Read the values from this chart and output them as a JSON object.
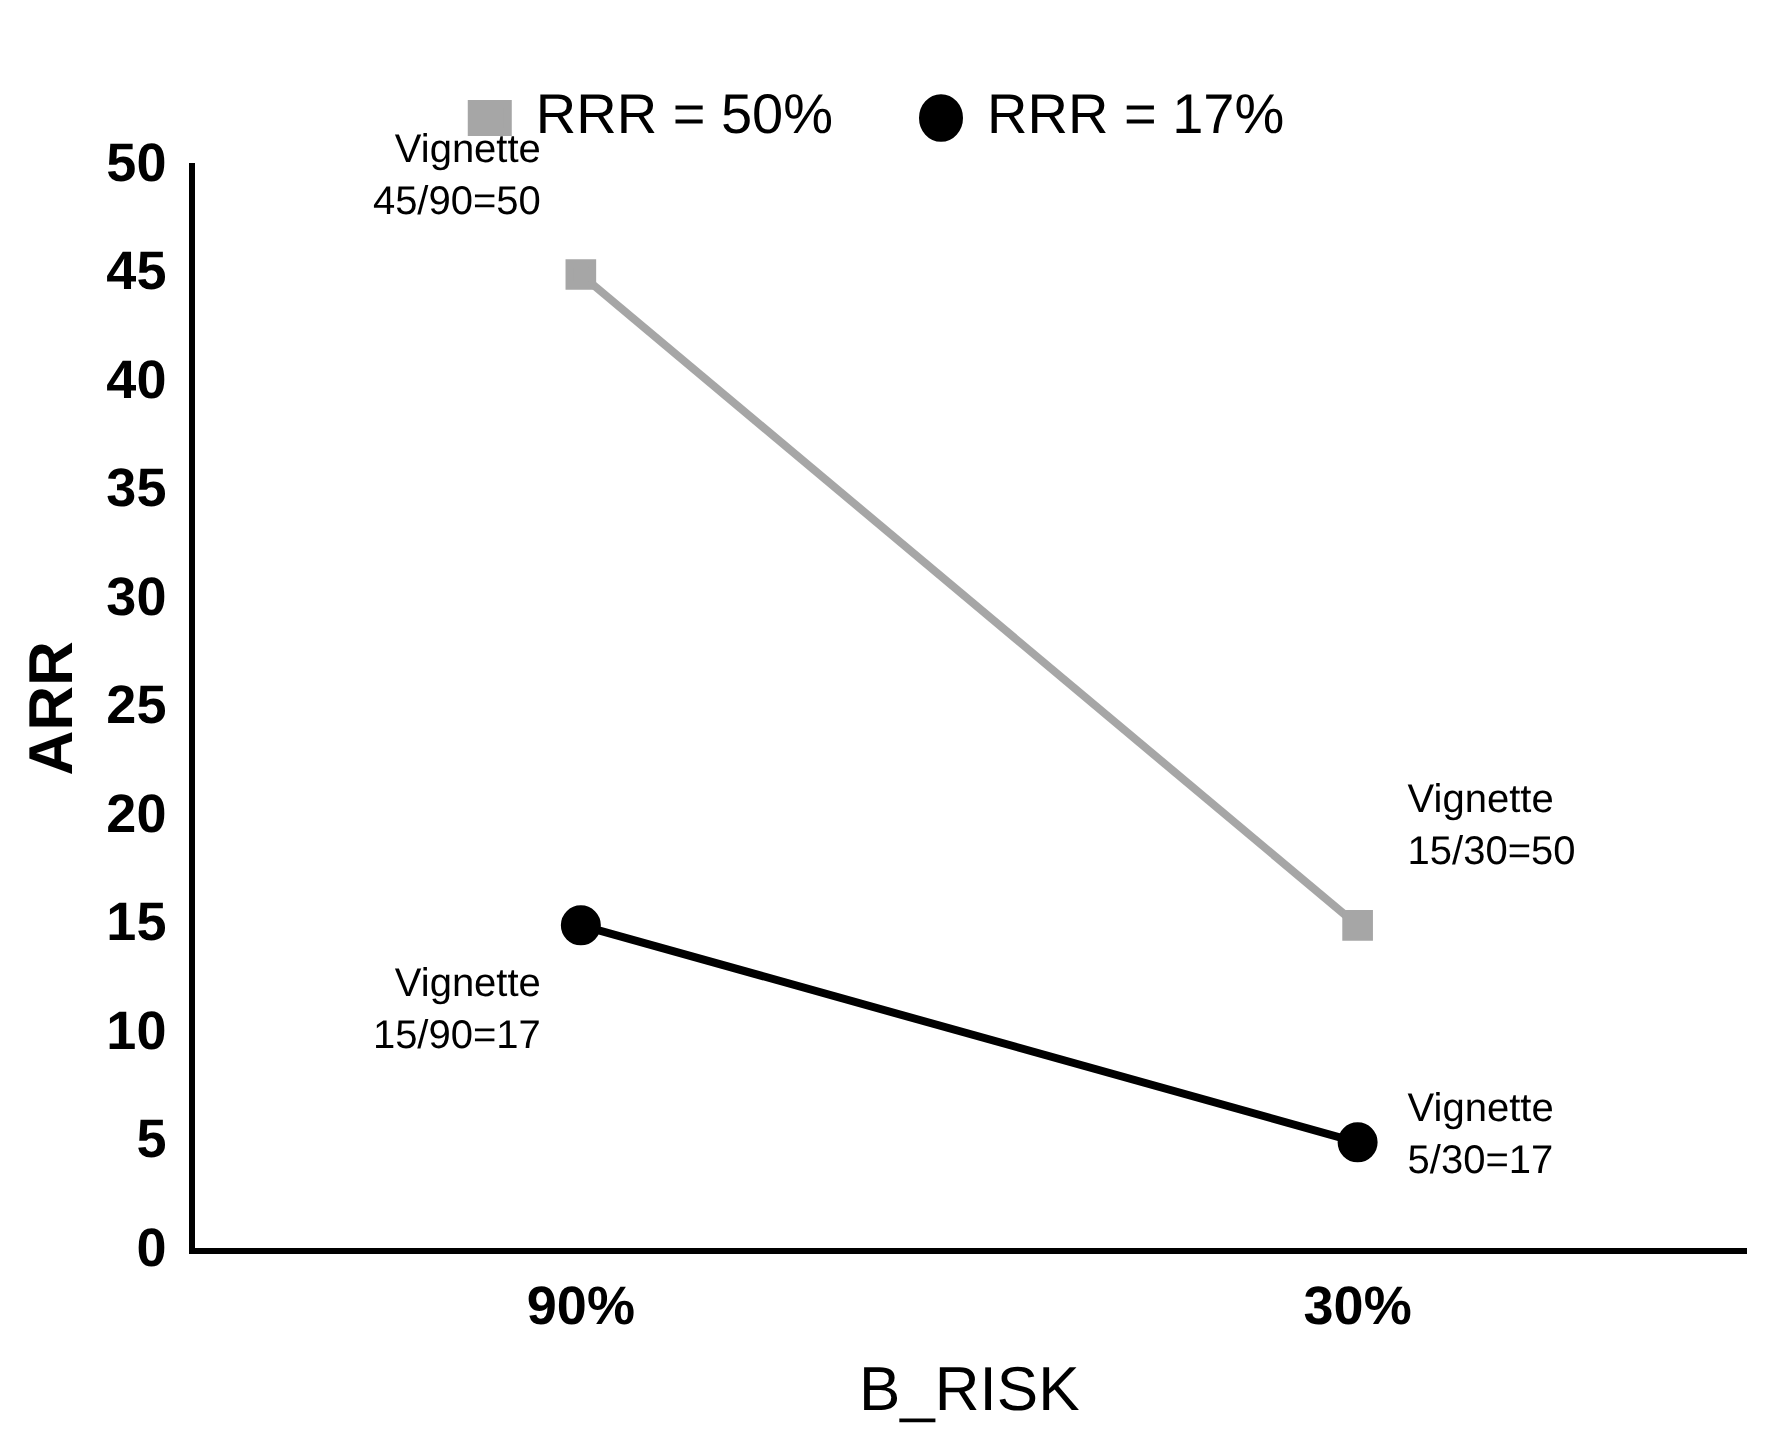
{
  "chart_data": {
    "type": "line",
    "xlabel": "B_RISK",
    "ylabel": "ARR",
    "categories": [
      "90%",
      "30%"
    ],
    "series": [
      {
        "name": "RRR = 50%",
        "color": "#a6a6a6",
        "values": [
          45,
          15
        ],
        "marker": "square"
      },
      {
        "name": "RRR = 17%",
        "color": "#000000",
        "values": [
          15,
          5
        ],
        "marker": "circle"
      }
    ],
    "ylim": [
      0,
      50
    ],
    "yticks": [
      0,
      5,
      10,
      15,
      20,
      25,
      30,
      35,
      40,
      45,
      50
    ],
    "grid": false,
    "legend": "top",
    "annotations": [
      {
        "text": "Vignette\n45/90=50",
        "x": "90%",
        "y": 45
      },
      {
        "text": "Vignette\n15/90=17",
        "x": "90%",
        "y": 15
      },
      {
        "text": "Vignette\n15/30=50",
        "x": "30%",
        "y": 15
      },
      {
        "text": "Vignette\n5/30=17",
        "x": "30%",
        "y": 5
      }
    ]
  }
}
